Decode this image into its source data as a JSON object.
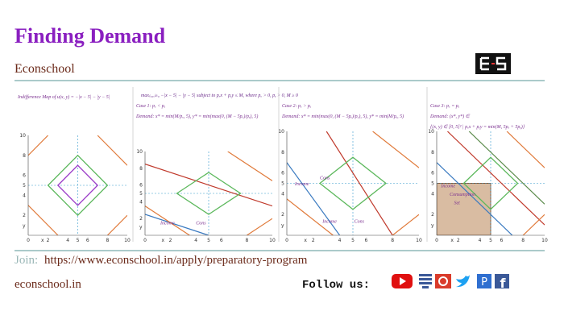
{
  "header": {
    "title": "Finding Demand",
    "subtitle": "Econschool"
  },
  "problem": "max₍ₓ,ᵧ₎≥₀ −|x − 5| − |y − 5| subject to pₓx + pᵧy ≤ M, where pₓ > 0, pᵧ > 0, M ≥ 0",
  "panels": [
    {
      "captions": [
        "Indifference Map of u(x, y) = −|x − 5| − |y − 5|"
      ],
      "xticks": [
        0,
        2,
        4,
        5,
        6,
        8,
        10
      ],
      "yticks": [
        2,
        4,
        5,
        6,
        8,
        10
      ],
      "x_label": "x",
      "y_label": "y",
      "notes": []
    },
    {
      "captions": [
        "Case 1:  pₓ < pᵧ",
        "Demand: x* = min(M/pₓ, 5), y* = min(max(0, (M − 5pₓ)/pᵧ), 5)"
      ],
      "xticks": [
        0,
        2,
        4,
        5,
        6,
        8,
        10
      ],
      "yticks": [
        2,
        4,
        5,
        6,
        8,
        10
      ],
      "x_label": "x",
      "y_label": "y",
      "notes": [
        "Income",
        "Cons"
      ]
    },
    {
      "captions": [
        "Case 2:  pₓ > pᵧ",
        "Demand: x* = min(max(0, (M − 5pᵧ)/pₓ), 5), y* = min(M/pᵧ, 5)"
      ],
      "xticks": [
        0,
        2,
        4,
        5,
        6,
        8,
        10
      ],
      "yticks": [
        2,
        4,
        5,
        6,
        8,
        10
      ],
      "x_label": "x",
      "y_label": "y",
      "notes": [
        "Income",
        "Cons",
        "Income",
        "Cons"
      ]
    },
    {
      "captions": [
        "Case 3:  pₓ = pᵧ",
        "Demand: (x*, y*) ∈",
        "{(x, y) ∈ [0, 5]² | pₓx + pᵧy = min(M, 5pₓ + 5pᵧ)}"
      ],
      "xticks": [
        0,
        2,
        4,
        5,
        6,
        8,
        10
      ],
      "yticks": [
        2,
        4,
        5,
        6,
        8,
        10
      ],
      "x_label": "x",
      "y_label": "y",
      "notes": [
        "Income",
        "Consumption",
        "Set"
      ]
    }
  ],
  "footer": {
    "join": "Join:",
    "link": "https://www.econschool.in/apply/preparatory-program",
    "site": "econschool.in",
    "follow": "Follow us:"
  }
}
